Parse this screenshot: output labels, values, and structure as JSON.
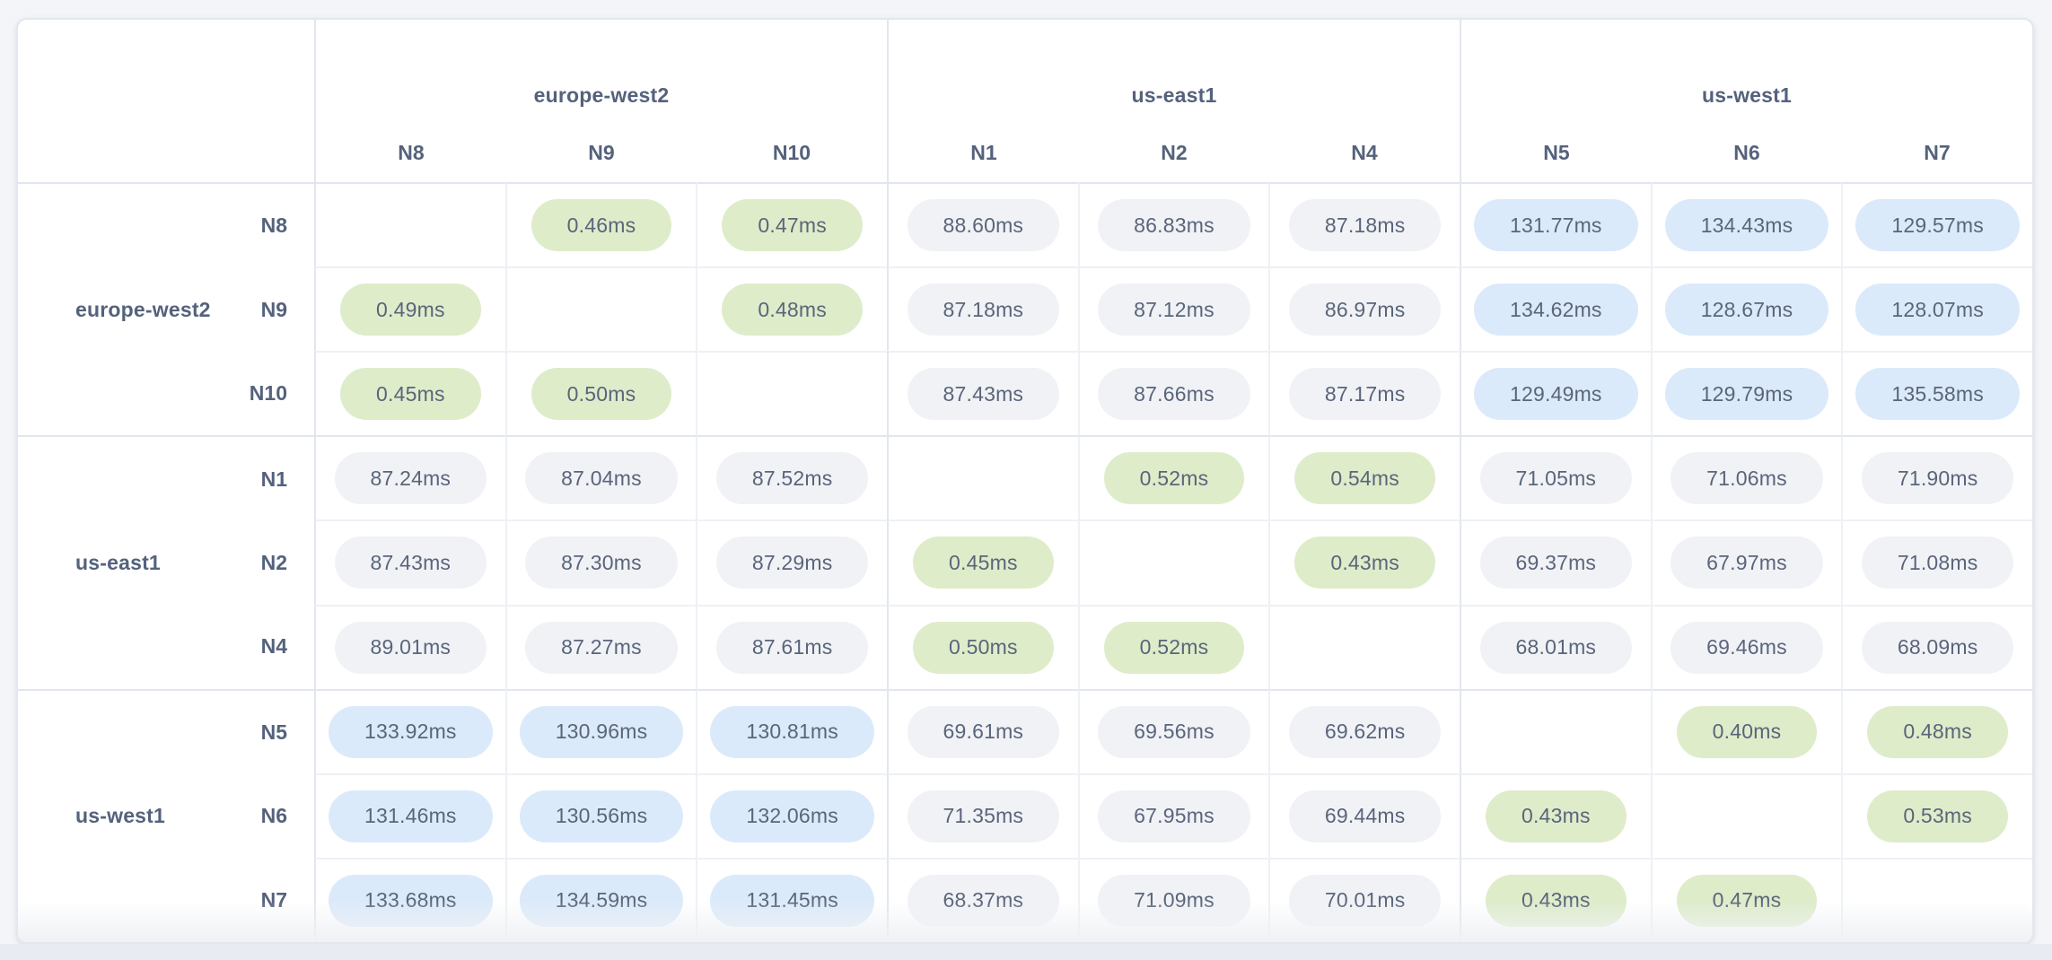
{
  "colors": {
    "pill_low": "#deecca",
    "pill_mid": "#f0f2f6",
    "pill_high": "#dbeafa",
    "value_text": "#5a657a",
    "label_text": "#55627c"
  },
  "matrix": {
    "col_groups": [
      {
        "region": "europe-west2",
        "nodes": [
          "N8",
          "N9",
          "N10"
        ]
      },
      {
        "region": "us-east1",
        "nodes": [
          "N1",
          "N2",
          "N4"
        ]
      },
      {
        "region": "us-west1",
        "nodes": [
          "N5",
          "N6",
          "N7"
        ]
      }
    ],
    "row_groups": [
      {
        "region": "europe-west2",
        "rows": [
          {
            "node": "N8",
            "values": [
              "",
              "0.46ms",
              "0.47ms",
              "88.60ms",
              "86.83ms",
              "87.18ms",
              "131.77ms",
              "134.43ms",
              "129.57ms"
            ]
          },
          {
            "node": "N9",
            "values": [
              "0.49ms",
              "",
              "0.48ms",
              "87.18ms",
              "87.12ms",
              "86.97ms",
              "134.62ms",
              "128.67ms",
              "128.07ms"
            ]
          },
          {
            "node": "N10",
            "values": [
              "0.45ms",
              "0.50ms",
              "",
              "87.43ms",
              "87.66ms",
              "87.17ms",
              "129.49ms",
              "129.79ms",
              "135.58ms"
            ]
          }
        ]
      },
      {
        "region": "us-east1",
        "rows": [
          {
            "node": "N1",
            "values": [
              "87.24ms",
              "87.04ms",
              "87.52ms",
              "",
              "0.52ms",
              "0.54ms",
              "71.05ms",
              "71.06ms",
              "71.90ms"
            ]
          },
          {
            "node": "N2",
            "values": [
              "87.43ms",
              "87.30ms",
              "87.29ms",
              "0.45ms",
              "",
              "0.43ms",
              "69.37ms",
              "67.97ms",
              "71.08ms"
            ]
          },
          {
            "node": "N4",
            "values": [
              "89.01ms",
              "87.27ms",
              "87.61ms",
              "0.50ms",
              "0.52ms",
              "",
              "68.01ms",
              "69.46ms",
              "68.09ms"
            ]
          }
        ]
      },
      {
        "region": "us-west1",
        "rows": [
          {
            "node": "N5",
            "values": [
              "133.92ms",
              "130.96ms",
              "130.81ms",
              "69.61ms",
              "69.56ms",
              "69.62ms",
              "",
              "0.40ms",
              "0.48ms"
            ]
          },
          {
            "node": "N6",
            "values": [
              "131.46ms",
              "130.56ms",
              "132.06ms",
              "71.35ms",
              "67.95ms",
              "69.44ms",
              "0.43ms",
              "",
              "0.53ms"
            ]
          },
          {
            "node": "N7",
            "values": [
              "133.68ms",
              "134.59ms",
              "131.45ms",
              "68.37ms",
              "71.09ms",
              "70.01ms",
              "0.43ms",
              "0.47ms",
              ""
            ]
          }
        ]
      }
    ]
  }
}
